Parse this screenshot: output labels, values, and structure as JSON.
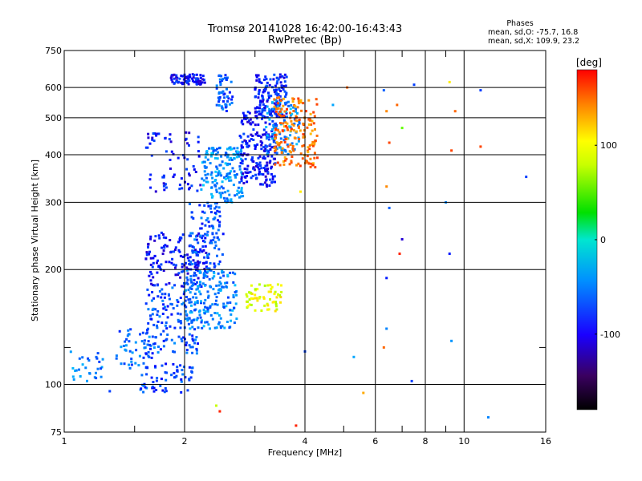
{
  "chart_data": {
    "type": "scatter",
    "title": "Tromsø 20141028 16:42:00-16:43:43",
    "subtitle": "RwPretec (Bp)",
    "xlabel": "Frequency [MHz]",
    "ylabel": "Stationary phase Virtual Height [km]",
    "x_scale": "log",
    "y_scale": "log",
    "xlim": [
      1,
      16
    ],
    "ylim": [
      75,
      750
    ],
    "x_ticks": [
      1,
      2,
      4,
      6,
      8,
      10,
      16
    ],
    "x_tick_labels": [
      "1",
      "2",
      "4",
      "6",
      "8",
      "10",
      "16"
    ],
    "y_ticks": [
      75,
      100,
      200,
      300,
      400,
      500,
      600,
      750
    ],
    "y_tick_labels": [
      "75",
      "100",
      "200",
      "300",
      "400",
      "500",
      "600",
      "750"
    ],
    "x_gridlines": [
      2,
      4,
      6,
      8,
      10
    ],
    "x_minor_lines": [
      1.5,
      3,
      5,
      7,
      9
    ],
    "y_gridlines": [
      100,
      200,
      300,
      400,
      500,
      600
    ],
    "y_minor_lines": [
      125
    ],
    "grid": true,
    "phases_info": {
      "title": "Phases",
      "line1": "mean, sd,O: -75.7, 16.8",
      "line2": "mean, sd,X: 109.9, 23.2"
    },
    "colorbar": {
      "label": "[deg]",
      "range": [
        -180,
        180
      ],
      "ticks": [
        100,
        0,
        -100
      ],
      "tick_labels": [
        "100",
        "0",
        "-100"
      ],
      "colormap": "rainbow"
    },
    "clusters": [
      {
        "x": [
          1.0,
          1.25
        ],
        "y": [
          100,
          125
        ],
        "phase": -80,
        "n": 30
      },
      {
        "x": [
          1.35,
          1.7
        ],
        "y": [
          110,
          140
        ],
        "phase": -90,
        "n": 55
      },
      {
        "x": [
          1.55,
          2.1
        ],
        "y": [
          95,
          115
        ],
        "phase": -100,
        "n": 60
      },
      {
        "x": [
          1.6,
          2.2
        ],
        "y": [
          120,
          180
        ],
        "phase": -95,
        "n": 140
      },
      {
        "x": [
          1.6,
          2.3
        ],
        "y": [
          180,
          250
        ],
        "phase": -115,
        "n": 150
      },
      {
        "x": [
          2.0,
          2.7
        ],
        "y": [
          140,
          200
        ],
        "phase": -80,
        "n": 170
      },
      {
        "x": [
          2.05,
          2.5
        ],
        "y": [
          200,
          300
        ],
        "phase": -95,
        "n": 110
      },
      {
        "x": [
          1.6,
          2.2
        ],
        "y": [
          320,
          460
        ],
        "phase": -115,
        "n": 70
      },
      {
        "x": [
          2.2,
          2.8
        ],
        "y": [
          300,
          420
        ],
        "phase": -75,
        "n": 170
      },
      {
        "x": [
          1.85,
          2.25
        ],
        "y": [
          610,
          650
        ],
        "phase": -115,
        "n": 75
      },
      {
        "x": [
          2.4,
          2.65
        ],
        "y": [
          520,
          650
        ],
        "phase": -95,
        "n": 50
      },
      {
        "x": [
          2.75,
          3.4
        ],
        "y": [
          330,
          520
        ],
        "phase": -115,
        "n": 200
      },
      {
        "x": [
          3.0,
          3.6
        ],
        "y": [
          500,
          650
        ],
        "phase": -110,
        "n": 140
      },
      {
        "x": [
          3.2,
          3.9
        ],
        "y": [
          400,
          560
        ],
        "phase": -75,
        "n": 90
      },
      {
        "x": [
          3.35,
          4.3
        ],
        "y": [
          370,
          570
        ],
        "phase": 145,
        "n": 170
      },
      {
        "x": [
          2.85,
          3.5
        ],
        "y": [
          155,
          185
        ],
        "phase": 100,
        "n": 60
      }
    ],
    "sparse_points": [
      {
        "x": 6.3,
        "y": 590,
        "phase": -90
      },
      {
        "x": 6.4,
        "y": 520,
        "phase": 140
      },
      {
        "x": 6.5,
        "y": 430,
        "phase": 160
      },
      {
        "x": 6.4,
        "y": 330,
        "phase": 140
      },
      {
        "x": 6.5,
        "y": 290,
        "phase": -90
      },
      {
        "x": 6.4,
        "y": 190,
        "phase": -110
      },
      {
        "x": 6.4,
        "y": 140,
        "phase": -80
      },
      {
        "x": 6.3,
        "y": 125,
        "phase": 150
      },
      {
        "x": 6.8,
        "y": 540,
        "phase": 150
      },
      {
        "x": 7.0,
        "y": 470,
        "phase": 60
      },
      {
        "x": 7.0,
        "y": 240,
        "phase": -130
      },
      {
        "x": 6.9,
        "y": 220,
        "phase": 170
      },
      {
        "x": 7.5,
        "y": 610,
        "phase": -100
      },
      {
        "x": 7.4,
        "y": 102,
        "phase": -100
      },
      {
        "x": 9.2,
        "y": 620,
        "phase": 110
      },
      {
        "x": 9.5,
        "y": 520,
        "phase": 150
      },
      {
        "x": 9.3,
        "y": 410,
        "phase": 160
      },
      {
        "x": 9.0,
        "y": 300,
        "phase": -80
      },
      {
        "x": 9.2,
        "y": 220,
        "phase": -110
      },
      {
        "x": 9.3,
        "y": 130,
        "phase": -75
      },
      {
        "x": 11.0,
        "y": 590,
        "phase": -100
      },
      {
        "x": 11.0,
        "y": 420,
        "phase": 160
      },
      {
        "x": 14.3,
        "y": 350,
        "phase": -100
      },
      {
        "x": 11.5,
        "y": 82,
        "phase": -80
      },
      {
        "x": 5.6,
        "y": 95,
        "phase": 130
      },
      {
        "x": 5.1,
        "y": 600,
        "phase": 150
      },
      {
        "x": 4.7,
        "y": 540,
        "phase": -70
      },
      {
        "x": 3.8,
        "y": 78,
        "phase": 170
      },
      {
        "x": 4.0,
        "y": 122,
        "phase": -100
      },
      {
        "x": 2.4,
        "y": 88,
        "phase": 90
      },
      {
        "x": 2.45,
        "y": 85,
        "phase": 170
      },
      {
        "x": 3.9,
        "y": 320,
        "phase": 110
      },
      {
        "x": 1.3,
        "y": 96,
        "phase": -100
      },
      {
        "x": 5.3,
        "y": 118,
        "phase": -70
      }
    ]
  }
}
